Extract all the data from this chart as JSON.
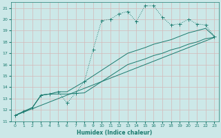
{
  "xlabel": "Humidex (Indice chaleur)",
  "bg_color": "#cce8e8",
  "grid_color": "#aacccc",
  "line_color": "#1a7a6e",
  "xlim": [
    -0.5,
    23.5
  ],
  "ylim": [
    11,
    21.5
  ],
  "xticks": [
    0,
    1,
    2,
    3,
    4,
    5,
    6,
    7,
    8,
    9,
    10,
    11,
    12,
    13,
    14,
    15,
    16,
    17,
    18,
    19,
    20,
    21,
    22,
    23
  ],
  "yticks": [
    11,
    12,
    13,
    14,
    15,
    16,
    17,
    18,
    19,
    20,
    21
  ],
  "line1_x": [
    0,
    1,
    2,
    3,
    4,
    5,
    6,
    7,
    8,
    9,
    10,
    11,
    12,
    13,
    14,
    15,
    16,
    17,
    18,
    19,
    20,
    21,
    22,
    23
  ],
  "line1_y": [
    11.5,
    11.9,
    12.2,
    13.3,
    13.4,
    13.6,
    12.6,
    13.5,
    14.5,
    17.3,
    19.9,
    20.0,
    20.5,
    20.7,
    19.8,
    21.2,
    21.2,
    20.2,
    19.5,
    19.6,
    20.0,
    19.6,
    19.5,
    18.5
  ],
  "line2_x": [
    0,
    2,
    3,
    4,
    5,
    6,
    8,
    9,
    10,
    11,
    12,
    13,
    15,
    16,
    17,
    18,
    19,
    20,
    21,
    22,
    23
  ],
  "line2_y": [
    11.5,
    12.2,
    13.3,
    13.4,
    13.6,
    13.6,
    14.5,
    15.0,
    15.5,
    16.0,
    16.5,
    17.0,
    17.5,
    17.8,
    18.0,
    18.2,
    18.5,
    18.8,
    19.0,
    19.2,
    18.5
  ],
  "line3_x": [
    0,
    2,
    3,
    4,
    5,
    6,
    8,
    9,
    10,
    11,
    12,
    13,
    15,
    16,
    17,
    18,
    19,
    20,
    21,
    22,
    23
  ],
  "line3_y": [
    11.5,
    12.2,
    13.3,
    13.4,
    13.4,
    13.4,
    13.5,
    14.0,
    14.5,
    15.0,
    15.5,
    16.0,
    16.5,
    16.8,
    17.0,
    17.3,
    17.5,
    17.8,
    18.0,
    18.3,
    18.4
  ],
  "line4_x": [
    0,
    23
  ],
  "line4_y": [
    11.5,
    18.4
  ]
}
